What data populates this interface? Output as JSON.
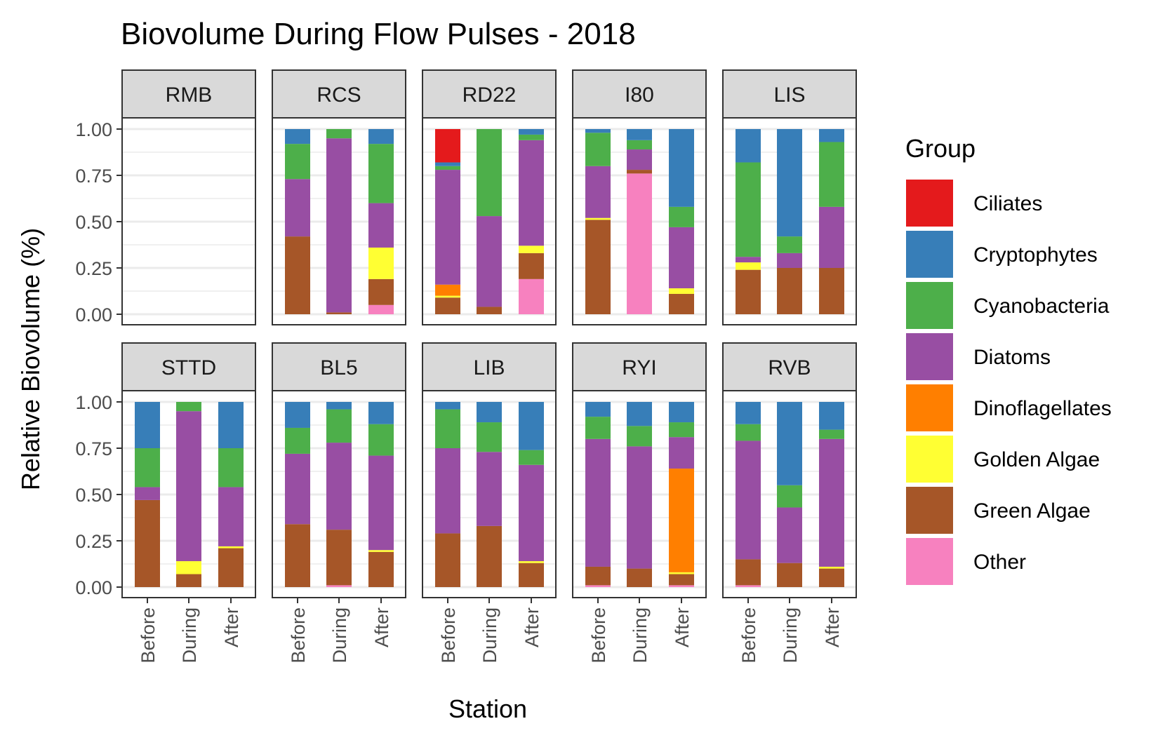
{
  "chart_data": {
    "type": "bar",
    "stacked": true,
    "title": "Biovolume During Flow Pulses - 2018",
    "xlabel": "Station",
    "ylabel": "Relative Biovolume (%)",
    "ylim": [
      0,
      1
    ],
    "yticks": [
      "0.00",
      "0.25",
      "0.50",
      "0.75",
      "1.00"
    ],
    "categories": [
      "Before",
      "During",
      "After"
    ],
    "legend": {
      "title": "Group",
      "placement": "right",
      "groups": [
        "Ciliates",
        "Cryptophytes",
        "Cyanobacteria",
        "Diatoms",
        "Dinoflagellates",
        "Golden Algae",
        "Green Algae",
        "Other"
      ]
    },
    "colors": {
      "Ciliates": "#E41A1C",
      "Cryptophytes": "#377EB8",
      "Cyanobacteria": "#4DAF4A",
      "Diatoms": "#984EA3",
      "Dinoflagellates": "#FF7F00",
      "Golden Algae": "#FFFF33",
      "Green Algae": "#A65628",
      "Other": "#F781BF"
    },
    "stack_order_bottom_to_top": [
      "Other",
      "Green Algae",
      "Golden Algae",
      "Dinoflagellates",
      "Diatoms",
      "Cyanobacteria",
      "Cryptophytes",
      "Ciliates"
    ],
    "panels": [
      {
        "station": "RMB",
        "bars": {
          "Before": null,
          "During": null,
          "After": null
        }
      },
      {
        "station": "RCS",
        "bars": {
          "Before": {
            "Green Algae": 0.42,
            "Diatoms": 0.31,
            "Cyanobacteria": 0.19,
            "Cryptophytes": 0.08
          },
          "During": {
            "Green Algae": 0.01,
            "Diatoms": 0.94,
            "Cyanobacteria": 0.05
          },
          "After": {
            "Other": 0.05,
            "Green Algae": 0.14,
            "Golden Algae": 0.17,
            "Diatoms": 0.24,
            "Cyanobacteria": 0.32,
            "Cryptophytes": 0.08
          }
        }
      },
      {
        "station": "RD22",
        "bars": {
          "Before": {
            "Green Algae": 0.09,
            "Golden Algae": 0.01,
            "Dinoflagellates": 0.06,
            "Diatoms": 0.62,
            "Cyanobacteria": 0.02,
            "Cryptophytes": 0.02,
            "Ciliates": 0.18
          },
          "During": {
            "Green Algae": 0.04,
            "Diatoms": 0.49,
            "Cyanobacteria": 0.47
          },
          "After": {
            "Other": 0.19,
            "Green Algae": 0.14,
            "Golden Algae": 0.04,
            "Diatoms": 0.57,
            "Cyanobacteria": 0.03,
            "Cryptophytes": 0.03
          }
        }
      },
      {
        "station": "I80",
        "bars": {
          "Before": {
            "Green Algae": 0.51,
            "Golden Algae": 0.01,
            "Diatoms": 0.28,
            "Cyanobacteria": 0.18,
            "Cryptophytes": 0.02
          },
          "During": {
            "Other": 0.76,
            "Green Algae": 0.02,
            "Diatoms": 0.11,
            "Cyanobacteria": 0.05,
            "Cryptophytes": 0.06
          },
          "After": {
            "Green Algae": 0.11,
            "Golden Algae": 0.03,
            "Diatoms": 0.33,
            "Cyanobacteria": 0.11,
            "Cryptophytes": 0.42
          }
        }
      },
      {
        "station": "LIS",
        "bars": {
          "Before": {
            "Green Algae": 0.24,
            "Golden Algae": 0.04,
            "Diatoms": 0.03,
            "Cyanobacteria": 0.51,
            "Cryptophytes": 0.18
          },
          "During": {
            "Green Algae": 0.25,
            "Diatoms": 0.08,
            "Cyanobacteria": 0.09,
            "Cryptophytes": 0.58
          },
          "After": {
            "Green Algae": 0.25,
            "Diatoms": 0.33,
            "Cyanobacteria": 0.35,
            "Cryptophytes": 0.07
          }
        }
      },
      {
        "station": "STTD",
        "bars": {
          "Before": {
            "Green Algae": 0.47,
            "Diatoms": 0.07,
            "Cyanobacteria": 0.21,
            "Cryptophytes": 0.25
          },
          "During": {
            "Green Algae": 0.07,
            "Golden Algae": 0.07,
            "Diatoms": 0.81,
            "Cyanobacteria": 0.05
          },
          "After": {
            "Green Algae": 0.21,
            "Golden Algae": 0.01,
            "Diatoms": 0.32,
            "Cyanobacteria": 0.21,
            "Cryptophytes": 0.25
          }
        }
      },
      {
        "station": "BL5",
        "bars": {
          "Before": {
            "Green Algae": 0.34,
            "Diatoms": 0.38,
            "Cyanobacteria": 0.14,
            "Cryptophytes": 0.14
          },
          "During": {
            "Other": 0.01,
            "Green Algae": 0.3,
            "Diatoms": 0.47,
            "Cyanobacteria": 0.18,
            "Cryptophytes": 0.04
          },
          "After": {
            "Green Algae": 0.19,
            "Golden Algae": 0.01,
            "Diatoms": 0.51,
            "Cyanobacteria": 0.17,
            "Cryptophytes": 0.12
          }
        }
      },
      {
        "station": "LIB",
        "bars": {
          "Before": {
            "Green Algae": 0.29,
            "Diatoms": 0.46,
            "Cyanobacteria": 0.21,
            "Cryptophytes": 0.04
          },
          "During": {
            "Green Algae": 0.33,
            "Diatoms": 0.4,
            "Cyanobacteria": 0.16,
            "Cryptophytes": 0.11
          },
          "After": {
            "Green Algae": 0.13,
            "Golden Algae": 0.01,
            "Diatoms": 0.52,
            "Cyanobacteria": 0.08,
            "Cryptophytes": 0.26
          }
        }
      },
      {
        "station": "RYI",
        "bars": {
          "Before": {
            "Other": 0.01,
            "Green Algae": 0.1,
            "Diatoms": 0.69,
            "Cyanobacteria": 0.12,
            "Cryptophytes": 0.08
          },
          "During": {
            "Green Algae": 0.1,
            "Diatoms": 0.66,
            "Cyanobacteria": 0.11,
            "Cryptophytes": 0.13
          },
          "After": {
            "Other": 0.01,
            "Green Algae": 0.06,
            "Golden Algae": 0.01,
            "Dinoflagellates": 0.56,
            "Diatoms": 0.17,
            "Cyanobacteria": 0.08,
            "Cryptophytes": 0.11
          }
        }
      },
      {
        "station": "RVB",
        "bars": {
          "Before": {
            "Other": 0.01,
            "Green Algae": 0.14,
            "Diatoms": 0.64,
            "Cyanobacteria": 0.09,
            "Cryptophytes": 0.12
          },
          "During": {
            "Green Algae": 0.13,
            "Diatoms": 0.3,
            "Cyanobacteria": 0.12,
            "Cryptophytes": 0.45
          },
          "After": {
            "Green Algae": 0.1,
            "Golden Algae": 0.01,
            "Diatoms": 0.69,
            "Cyanobacteria": 0.05,
            "Cryptophytes": 0.15
          }
        }
      }
    ]
  }
}
